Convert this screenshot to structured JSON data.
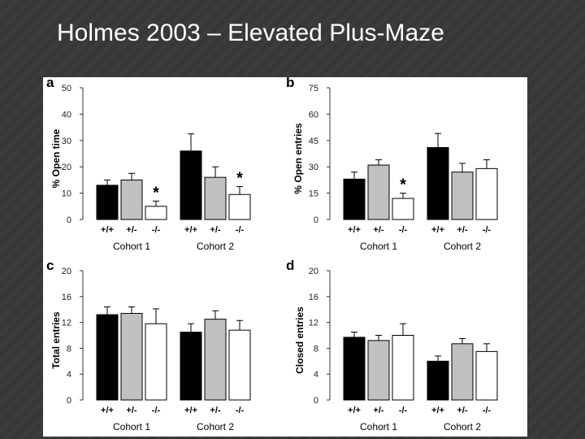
{
  "slide": {
    "title": "Holmes 2003 – Elevated Plus-Maze"
  },
  "colors": {
    "background": "#3a3a3a",
    "figure_bg": "#ffffff",
    "wildtype": "#000000",
    "het": "#c0c0c0",
    "knockout": "#ffffff"
  },
  "chart_data": [
    {
      "type": "bar",
      "panel": "a",
      "ylabel": "% Open time",
      "ylim": [
        0,
        50
      ],
      "yticks": [
        0,
        10,
        20,
        30,
        40,
        50
      ],
      "groups": [
        {
          "name": "Cohort 1",
          "categories": [
            "+/+",
            "+/-",
            "-/-"
          ],
          "values": [
            13,
            15,
            5
          ],
          "errors": [
            2,
            2.5,
            2
          ],
          "significant": [
            false,
            false,
            true
          ]
        },
        {
          "name": "Cohort 2",
          "categories": [
            "+/+",
            "+/-",
            "-/-"
          ],
          "values": [
            26,
            16,
            9.5
          ],
          "errors": [
            6.5,
            4,
            3
          ],
          "significant": [
            false,
            false,
            true
          ]
        }
      ]
    },
    {
      "type": "bar",
      "panel": "b",
      "ylabel": "% Open entries",
      "ylim": [
        0,
        75
      ],
      "yticks": [
        0,
        15,
        30,
        45,
        60,
        75
      ],
      "groups": [
        {
          "name": "Cohort 1",
          "categories": [
            "+/+",
            "+/-",
            "-/-"
          ],
          "values": [
            23,
            31,
            12
          ],
          "errors": [
            4,
            3,
            3
          ],
          "significant": [
            false,
            false,
            true
          ]
        },
        {
          "name": "Cohort 2",
          "categories": [
            "+/+",
            "+/-",
            "-/-"
          ],
          "values": [
            41,
            27,
            29
          ],
          "errors": [
            8,
            5,
            5
          ],
          "significant": [
            false,
            false,
            false
          ]
        }
      ]
    },
    {
      "type": "bar",
      "panel": "c",
      "ylabel": "Total entries",
      "ylim": [
        0,
        20
      ],
      "yticks": [
        0,
        4,
        8,
        12,
        16,
        20
      ],
      "groups": [
        {
          "name": "Cohort 1",
          "categories": [
            "+/+",
            "+/-",
            "-/-"
          ],
          "values": [
            13.2,
            13.4,
            11.8
          ],
          "errors": [
            1.2,
            1.0,
            2.3
          ],
          "significant": [
            false,
            false,
            false
          ]
        },
        {
          "name": "Cohort 2",
          "categories": [
            "+/+",
            "+/-",
            "-/-"
          ],
          "values": [
            10.5,
            12.5,
            10.8
          ],
          "errors": [
            1.3,
            1.3,
            1.5
          ],
          "significant": [
            false,
            false,
            false
          ]
        }
      ]
    },
    {
      "type": "bar",
      "panel": "d",
      "ylabel": "Closed entries",
      "ylim": [
        0,
        20
      ],
      "yticks": [
        0,
        4,
        8,
        12,
        16,
        20
      ],
      "groups": [
        {
          "name": "Cohort 1",
          "categories": [
            "+/+",
            "+/-",
            "-/-"
          ],
          "values": [
            9.7,
            9.2,
            10.0
          ],
          "errors": [
            0.8,
            0.8,
            1.8
          ],
          "significant": [
            false,
            false,
            false
          ]
        },
        {
          "name": "Cohort 2",
          "categories": [
            "+/+",
            "+/-",
            "-/-"
          ],
          "values": [
            6.0,
            8.7,
            7.5
          ],
          "errors": [
            0.8,
            0.8,
            1.2
          ],
          "significant": [
            false,
            false,
            false
          ]
        }
      ]
    }
  ]
}
